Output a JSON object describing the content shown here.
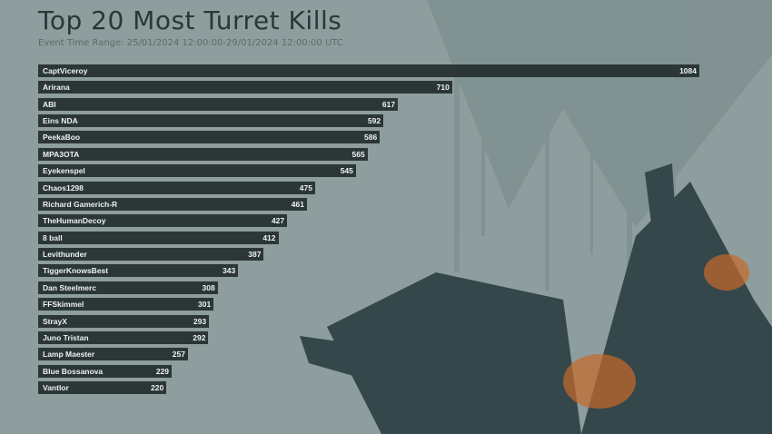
{
  "chart_data": {
    "type": "bar",
    "orientation": "horizontal",
    "title": "Top 20 Most Turret Kills",
    "subtitle": "Event Time Range: 25/01/2024 12:00:00-29/01/2024 12:00:00 UTC",
    "categories": [
      "CaptViceroy",
      "Arirana",
      "ABI",
      "Eins NDA",
      "PeekaBoo",
      "MPA3OTA",
      "Eyekenspel",
      "Chaos1298",
      "Richard Gamerich-R",
      "TheHumanDecoy",
      "8 ball",
      "Levithunder",
      "TiggerKnowsBest",
      "Dan Steelmerc",
      "FFSkimmel",
      "StrayX",
      "Juno Tristan",
      "Lamp Maester",
      "Blue Bossanova",
      "Vantlor"
    ],
    "values": [
      1084,
      710,
      617,
      592,
      586,
      565,
      545,
      475,
      461,
      427,
      412,
      387,
      343,
      308,
      301,
      293,
      292,
      257,
      229,
      220
    ],
    "grid": false,
    "colors": {
      "bar": "#2b3637",
      "label": "#eef2f2",
      "background": "#8e9d9d"
    }
  }
}
